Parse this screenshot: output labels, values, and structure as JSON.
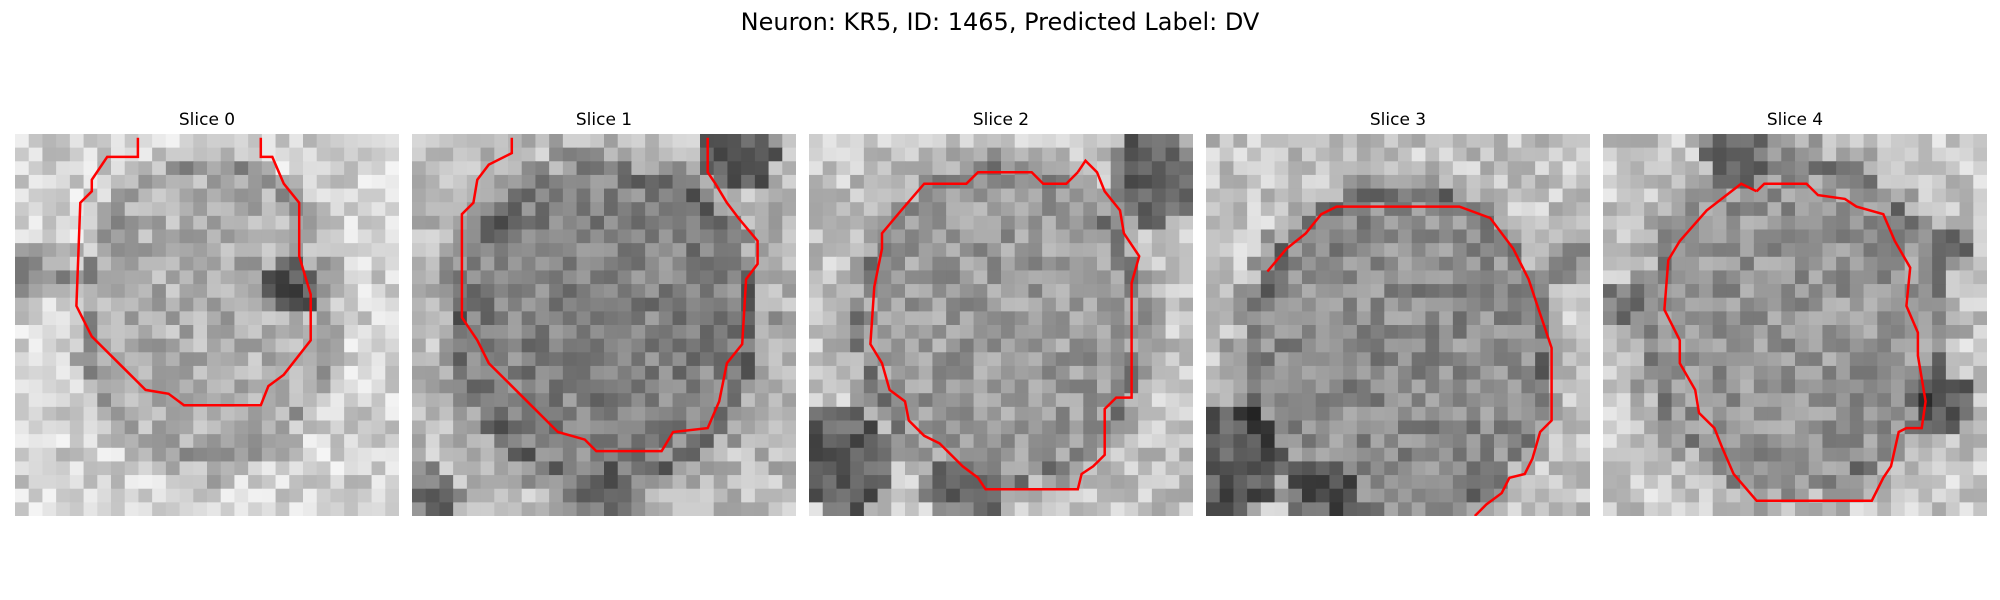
{
  "title": "Neuron: KR5, ID: 1465, Predicted Label: DV",
  "contour_color": "#ff0000",
  "panels": [
    {
      "label": "Slice 0"
    },
    {
      "label": "Slice 1"
    },
    {
      "label": "Slice 2"
    },
    {
      "label": "Slice 3"
    },
    {
      "label": "Slice 4"
    }
  ]
}
